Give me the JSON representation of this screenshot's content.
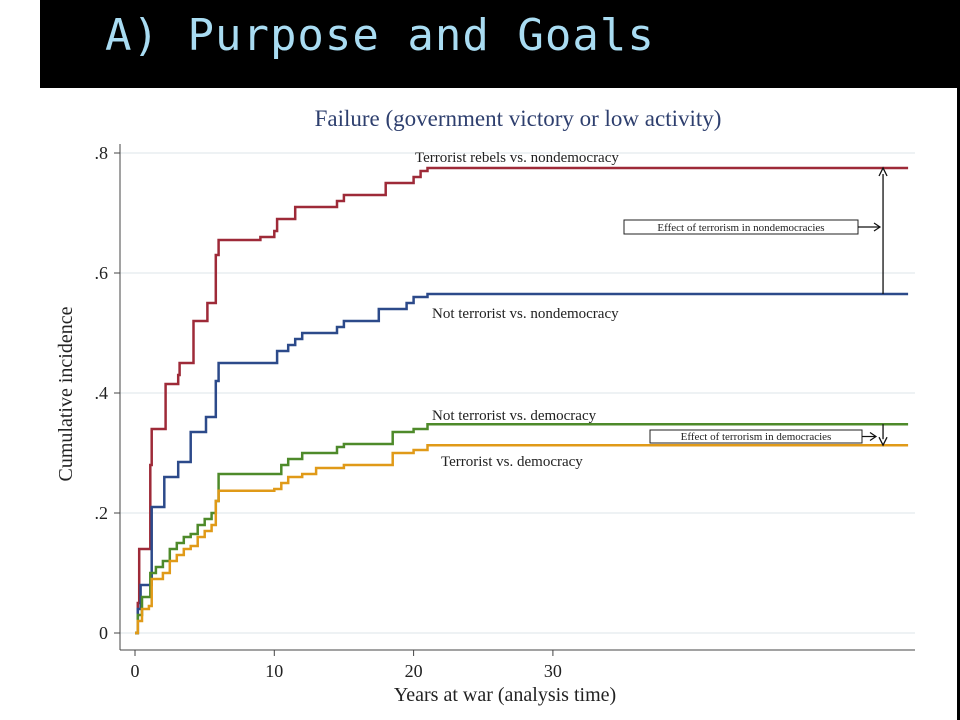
{
  "slide": {
    "title": "A) Purpose and Goals",
    "accent_color": "#a9dcf2"
  },
  "chart_data": {
    "type": "line",
    "title": "Failure (government victory or low activity)",
    "xlabel": "Years at war (analysis time)",
    "ylabel": "Cumulative incidence",
    "xlim": [
      0,
      56
    ],
    "ylim": [
      0,
      0.8
    ],
    "x_ticks": [
      0,
      10,
      20,
      30
    ],
    "x_tick_labels": [
      "0",
      "10",
      "20",
      "30"
    ],
    "y_ticks": [
      0,
      0.2,
      0.4,
      0.6,
      0.8
    ],
    "y_tick_labels": [
      "0",
      ".2",
      ".4",
      ".6",
      ".8"
    ],
    "grid": true,
    "series": [
      {
        "name": "Terrorist rebels vs. nondemocracy",
        "color": "#9e2a38",
        "step": true,
        "points": [
          [
            0,
            0
          ],
          [
            0.2,
            0.05
          ],
          [
            0.3,
            0.14
          ],
          [
            1.0,
            0.14
          ],
          [
            1.1,
            0.28
          ],
          [
            1.2,
            0.34
          ],
          [
            2.0,
            0.34
          ],
          [
            2.2,
            0.415
          ],
          [
            3.0,
            0.415
          ],
          [
            3.1,
            0.43
          ],
          [
            3.2,
            0.45
          ],
          [
            4.0,
            0.45
          ],
          [
            4.2,
            0.52
          ],
          [
            5.0,
            0.52
          ],
          [
            5.2,
            0.55
          ],
          [
            5.7,
            0.55
          ],
          [
            5.8,
            0.63
          ],
          [
            6.0,
            0.655
          ],
          [
            8.5,
            0.655
          ],
          [
            9.0,
            0.66
          ],
          [
            10.0,
            0.67
          ],
          [
            10.2,
            0.69
          ],
          [
            11.0,
            0.69
          ],
          [
            11.5,
            0.71
          ],
          [
            14.0,
            0.71
          ],
          [
            14.5,
            0.72
          ],
          [
            15.0,
            0.73
          ],
          [
            17.5,
            0.73
          ],
          [
            18.0,
            0.75
          ],
          [
            19.5,
            0.75
          ],
          [
            20.0,
            0.76
          ],
          [
            20.5,
            0.77
          ],
          [
            21.0,
            0.775
          ],
          [
            55.5,
            0.775
          ]
        ]
      },
      {
        "name": "Not terrorist vs. nondemocracy",
        "color": "#2c4a8a",
        "step": true,
        "points": [
          [
            0,
            0
          ],
          [
            0.2,
            0.04
          ],
          [
            0.4,
            0.08
          ],
          [
            1.0,
            0.08
          ],
          [
            1.2,
            0.21
          ],
          [
            2.0,
            0.21
          ],
          [
            2.1,
            0.26
          ],
          [
            3.0,
            0.26
          ],
          [
            3.1,
            0.285
          ],
          [
            3.8,
            0.285
          ],
          [
            4.0,
            0.335
          ],
          [
            5.0,
            0.335
          ],
          [
            5.1,
            0.36
          ],
          [
            5.6,
            0.36
          ],
          [
            5.8,
            0.42
          ],
          [
            6.0,
            0.45
          ],
          [
            10.0,
            0.45
          ],
          [
            10.2,
            0.47
          ],
          [
            11.0,
            0.48
          ],
          [
            11.5,
            0.49
          ],
          [
            12.0,
            0.5
          ],
          [
            14.0,
            0.5
          ],
          [
            14.5,
            0.51
          ],
          [
            15.0,
            0.52
          ],
          [
            17.0,
            0.52
          ],
          [
            17.5,
            0.54
          ],
          [
            19.0,
            0.54
          ],
          [
            19.5,
            0.55
          ],
          [
            20.0,
            0.56
          ],
          [
            21.0,
            0.565
          ],
          [
            55.5,
            0.565
          ]
        ]
      },
      {
        "name": "Not terrorist vs. democracy",
        "color": "#4e8a2a",
        "step": true,
        "points": [
          [
            0,
            0
          ],
          [
            0.2,
            0.03
          ],
          [
            0.5,
            0.06
          ],
          [
            1.0,
            0.06
          ],
          [
            1.1,
            0.1
          ],
          [
            1.5,
            0.11
          ],
          [
            2.0,
            0.12
          ],
          [
            2.5,
            0.14
          ],
          [
            3.0,
            0.15
          ],
          [
            3.5,
            0.16
          ],
          [
            4.0,
            0.165
          ],
          [
            4.5,
            0.18
          ],
          [
            5.0,
            0.19
          ],
          [
            5.5,
            0.2
          ],
          [
            5.8,
            0.22
          ],
          [
            6.0,
            0.265
          ],
          [
            10.0,
            0.265
          ],
          [
            10.5,
            0.28
          ],
          [
            11.0,
            0.29
          ],
          [
            12.0,
            0.3
          ],
          [
            14.0,
            0.3
          ],
          [
            14.5,
            0.31
          ],
          [
            15.0,
            0.315
          ],
          [
            18.0,
            0.315
          ],
          [
            18.5,
            0.335
          ],
          [
            20.0,
            0.34
          ],
          [
            21.0,
            0.348
          ],
          [
            55.5,
            0.348
          ]
        ]
      },
      {
        "name": "Terrorist vs. democracy",
        "color": "#e09a18",
        "step": true,
        "points": [
          [
            0,
            0
          ],
          [
            0.2,
            0.02
          ],
          [
            0.5,
            0.04
          ],
          [
            1.0,
            0.045
          ],
          [
            1.2,
            0.09
          ],
          [
            2.0,
            0.1
          ],
          [
            2.5,
            0.12
          ],
          [
            3.0,
            0.13
          ],
          [
            3.5,
            0.14
          ],
          [
            4.0,
            0.145
          ],
          [
            4.5,
            0.16
          ],
          [
            5.0,
            0.17
          ],
          [
            5.5,
            0.18
          ],
          [
            5.8,
            0.22
          ],
          [
            6.0,
            0.237
          ],
          [
            10.0,
            0.24
          ],
          [
            10.5,
            0.25
          ],
          [
            11.0,
            0.26
          ],
          [
            12.0,
            0.265
          ],
          [
            13.0,
            0.275
          ],
          [
            14.0,
            0.275
          ],
          [
            15.0,
            0.28
          ],
          [
            18.0,
            0.28
          ],
          [
            18.5,
            0.3
          ],
          [
            20.0,
            0.305
          ],
          [
            21.0,
            0.313
          ],
          [
            55.5,
            0.313
          ]
        ]
      }
    ],
    "annotations": [
      {
        "text": "Effect of terrorism in nondemocracies",
        "x_from": 53.7,
        "y_from": 0.565,
        "y_to": 0.775
      },
      {
        "text": "Effect of terrorism in democracies",
        "x_from": 53.7,
        "y_from": 0.348,
        "y_to": 0.313
      }
    ]
  }
}
